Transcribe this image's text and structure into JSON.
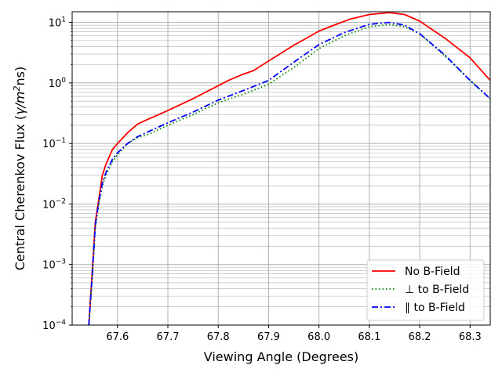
{
  "chart_data": {
    "type": "line",
    "xlabel": "Viewing Angle (Degrees)",
    "ylabel_parts": [
      "Central Cherenkov Flux (",
      "γ/m",
      "2",
      "ns)"
    ],
    "xlim": [
      67.51,
      68.34
    ],
    "ylim": [
      0.0001,
      15
    ],
    "yscale": "log",
    "grid": true,
    "legend_position": "lower-right",
    "x_ticks": [
      {
        "value": 67.6,
        "label": "67.6"
      },
      {
        "value": 67.7,
        "label": "67.7"
      },
      {
        "value": 67.8,
        "label": "67.8"
      },
      {
        "value": 67.9,
        "label": "67.9"
      },
      {
        "value": 68.0,
        "label": "68.0"
      },
      {
        "value": 68.1,
        "label": "68.1"
      },
      {
        "value": 68.2,
        "label": "68.2"
      },
      {
        "value": 68.3,
        "label": "68.3"
      }
    ],
    "y_ticks": [
      {
        "value": 0.0001,
        "base": "10",
        "exp": "−4"
      },
      {
        "value": 0.001,
        "base": "10",
        "exp": "−3"
      },
      {
        "value": 0.01,
        "base": "10",
        "exp": "−2"
      },
      {
        "value": 0.1,
        "base": "10",
        "exp": "−1"
      },
      {
        "value": 1,
        "base": "10",
        "exp": "0"
      },
      {
        "value": 10,
        "base": "10",
        "exp": "1"
      }
    ],
    "series": [
      {
        "name": "No B-Field",
        "color": "#ff0000",
        "style": "solid",
        "x": [
          67.543,
          67.55,
          67.556,
          67.563,
          67.57,
          67.577,
          67.59,
          67.6,
          67.62,
          67.64,
          67.66,
          67.7,
          67.75,
          67.8,
          67.82,
          67.85,
          67.87,
          67.9,
          67.95,
          67.97,
          68.0,
          68.03,
          68.06,
          68.1,
          68.14,
          68.17,
          68.2,
          68.25,
          68.3,
          68.34
        ],
        "y": [
          0.0001,
          0.0008,
          0.005,
          0.012,
          0.03,
          0.045,
          0.08,
          0.1,
          0.15,
          0.21,
          0.25,
          0.35,
          0.55,
          0.9,
          1.1,
          1.4,
          1.6,
          2.3,
          4.2,
          5.2,
          7.2,
          9.0,
          11.2,
          13.5,
          14.5,
          13.5,
          10.5,
          5.5,
          2.6,
          1.1
        ]
      },
      {
        "name": "⊥ to B-Field",
        "color": "#008000",
        "style": "dotted",
        "x": [
          67.543,
          67.55,
          67.556,
          67.563,
          67.57,
          67.577,
          67.59,
          67.6,
          67.62,
          67.64,
          67.66,
          67.7,
          67.75,
          67.8,
          67.85,
          67.9,
          67.95,
          68.0,
          68.05,
          68.1,
          68.14,
          68.17,
          68.2,
          68.25,
          68.3,
          68.34
        ],
        "y": [
          0.0001,
          0.0006,
          0.004,
          0.01,
          0.02,
          0.03,
          0.05,
          0.065,
          0.1,
          0.125,
          0.14,
          0.2,
          0.3,
          0.47,
          0.65,
          0.95,
          1.8,
          3.7,
          6.0,
          8.5,
          9.2,
          8.5,
          6.5,
          2.8,
          1.1,
          0.55
        ]
      },
      {
        "name": "∥ to B-Field",
        "color": "#0000ff",
        "style": "dashdot",
        "x": [
          67.543,
          67.55,
          67.556,
          67.563,
          67.57,
          67.577,
          67.59,
          67.6,
          67.62,
          67.64,
          67.66,
          67.7,
          67.75,
          67.8,
          67.85,
          67.9,
          67.95,
          68.0,
          68.05,
          68.1,
          68.14,
          68.17,
          68.2,
          68.25,
          68.3,
          68.34
        ],
        "y": [
          0.0001,
          0.0007,
          0.0045,
          0.011,
          0.022,
          0.033,
          0.055,
          0.07,
          0.1,
          0.13,
          0.155,
          0.22,
          0.33,
          0.52,
          0.75,
          1.1,
          2.2,
          4.3,
          6.8,
          9.3,
          10.0,
          9.0,
          6.5,
          2.9,
          1.1,
          0.55
        ]
      }
    ]
  }
}
